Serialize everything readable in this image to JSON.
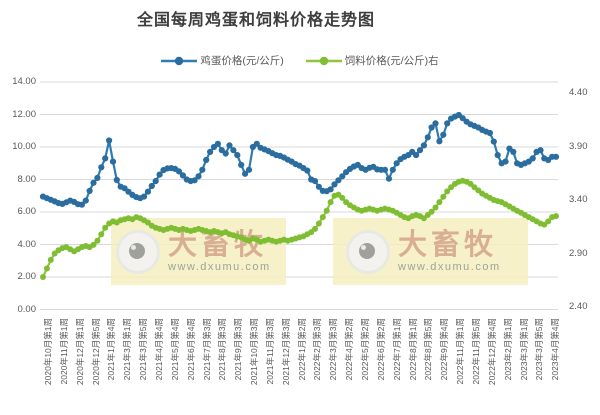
{
  "title": "全国每周鸡蛋和饲料价格走势图",
  "legend": {
    "items": [
      {
        "label": "鸡蛋价格(元/公斤)",
        "color": "#2e7cb0",
        "dot_color": "#2a6d9e"
      },
      {
        "label": "饲料价格(元/公斤)右",
        "color": "#8dc63f",
        "dot_color": "#7fbd33"
      }
    ]
  },
  "watermark": {
    "brand": "大畜牧",
    "url": "www.dxumu.com"
  },
  "colors": {
    "grid": "#d9d9d9",
    "axis_text": "#595959",
    "title_text": "#3d3d3d",
    "watermark_bg": "#f5eebb"
  },
  "chart_data": {
    "type": "line",
    "title": "全国每周鸡蛋和饲料价格走势图",
    "grid": true,
    "legend_position": "top",
    "x_labels": [
      "2020年10月第1周",
      "2020年11月第1周",
      "2020年12月第1周",
      "2020年12月第5周",
      "2021年1月第4周",
      "2021年3月第1周",
      "2021年3月第5周",
      "2021年4月第4周",
      "2021年5月第4周",
      "2021年6月第4周",
      "2021年7月第3周",
      "2021年8月第3周",
      "2021年9月第3周",
      "2021年10月第3周",
      "2021年11月第3周",
      "2021年12月第3周",
      "2022年1月第2周",
      "2022年2月第3周",
      "2022年3月第3周",
      "2022年4月第2周",
      "2022年5月第2周",
      "2022年6月第2周",
      "2022年7月第1周",
      "2022年8月第1周",
      "2022年8月第5周",
      "2022年9月第4周",
      "2022年11月第1周",
      "2022年11月第5周",
      "2022年12月第4周",
      "2023年2月第1周",
      "2023年3月第1周",
      "2023年3月第5周",
      "2023年4月第4周"
    ],
    "left_axis": {
      "min": 0,
      "max": 14,
      "step": 2,
      "ticks": [
        "0.00",
        "2.00",
        "4.00",
        "6.00",
        "8.00",
        "10.00",
        "12.00",
        "14.00"
      ]
    },
    "right_axis": {
      "min": 2.4,
      "max": 4.4,
      "step": 0.5,
      "ticks": [
        "2.40",
        "2.90",
        "3.40",
        "3.90",
        "4.40"
      ]
    },
    "series": [
      {
        "name": "鸡蛋价格(元/公斤)",
        "axis": "left",
        "color": "#2e7cb0",
        "dot_color": "#2a6d9e",
        "marker_r": 3.1,
        "values": [
          6.95,
          6.85,
          6.75,
          6.65,
          6.55,
          6.5,
          6.6,
          6.7,
          6.62,
          6.48,
          6.45,
          6.7,
          7.3,
          7.8,
          8.1,
          8.75,
          9.3,
          10.4,
          9.1,
          7.97,
          7.56,
          7.46,
          7.25,
          7.05,
          6.92,
          6.85,
          6.95,
          7.25,
          7.6,
          7.9,
          8.3,
          8.58,
          8.68,
          8.7,
          8.65,
          8.5,
          8.25,
          8.0,
          7.9,
          7.95,
          8.2,
          8.6,
          9.2,
          9.7,
          10.0,
          10.2,
          9.8,
          9.6,
          10.1,
          9.8,
          9.5,
          8.9,
          8.35,
          8.6,
          10.0,
          10.2,
          9.95,
          9.85,
          9.75,
          9.62,
          9.5,
          9.45,
          9.35,
          9.22,
          9.1,
          8.95,
          8.85,
          8.7,
          8.55,
          8.0,
          7.9,
          7.55,
          7.3,
          7.28,
          7.4,
          7.7,
          7.95,
          8.2,
          8.45,
          8.65,
          8.8,
          8.9,
          8.7,
          8.6,
          8.72,
          8.78,
          8.62,
          8.6,
          8.6,
          8.05,
          8.6,
          9.0,
          9.25,
          9.4,
          9.5,
          9.7,
          9.5,
          9.8,
          10.1,
          10.6,
          11.2,
          11.45,
          10.35,
          10.75,
          11.45,
          11.75,
          11.87,
          11.97,
          11.77,
          11.56,
          11.4,
          11.3,
          11.2,
          11.05,
          10.95,
          10.86,
          10.33,
          9.5,
          9.0,
          9.1,
          9.9,
          9.7,
          9.0,
          8.9,
          9.0,
          9.1,
          9.3,
          9.7,
          9.8,
          9.3,
          9.2,
          9.4,
          9.4
        ]
      },
      {
        "name": "饲料价格(元/公斤)右",
        "axis": "right",
        "color": "#8dc63f",
        "dot_color": "#7fbd33",
        "marker_r": 3.0,
        "values": [
          2.68,
          2.76,
          2.84,
          2.9,
          2.93,
          2.95,
          2.96,
          2.94,
          2.92,
          2.94,
          2.96,
          2.97,
          2.96,
          2.98,
          3.02,
          3.08,
          3.14,
          3.18,
          3.2,
          3.19,
          3.21,
          3.22,
          3.23,
          3.22,
          3.24,
          3.23,
          3.21,
          3.19,
          3.16,
          3.14,
          3.13,
          3.12,
          3.13,
          3.14,
          3.13,
          3.12,
          3.13,
          3.12,
          3.11,
          3.12,
          3.13,
          3.12,
          3.11,
          3.1,
          3.11,
          3.1,
          3.09,
          3.1,
          3.08,
          3.07,
          3.06,
          3.05,
          3.03,
          3.02,
          3.04,
          3.03,
          3.01,
          3.02,
          3.03,
          3.02,
          3.01,
          3.02,
          3.03,
          3.02,
          3.03,
          3.04,
          3.05,
          3.06,
          3.08,
          3.1,
          3.13,
          3.18,
          3.24,
          3.3,
          3.38,
          3.44,
          3.45,
          3.42,
          3.38,
          3.35,
          3.33,
          3.31,
          3.3,
          3.31,
          3.32,
          3.31,
          3.3,
          3.31,
          3.32,
          3.31,
          3.3,
          3.28,
          3.26,
          3.24,
          3.23,
          3.25,
          3.26,
          3.25,
          3.23,
          3.26,
          3.29,
          3.33,
          3.38,
          3.43,
          3.48,
          3.52,
          3.55,
          3.57,
          3.58,
          3.57,
          3.55,
          3.52,
          3.49,
          3.46,
          3.44,
          3.42,
          3.4,
          3.39,
          3.38,
          3.36,
          3.34,
          3.32,
          3.3,
          3.28,
          3.26,
          3.24,
          3.22,
          3.2,
          3.18,
          3.17,
          3.2,
          3.24,
          3.25
        ]
      }
    ]
  }
}
